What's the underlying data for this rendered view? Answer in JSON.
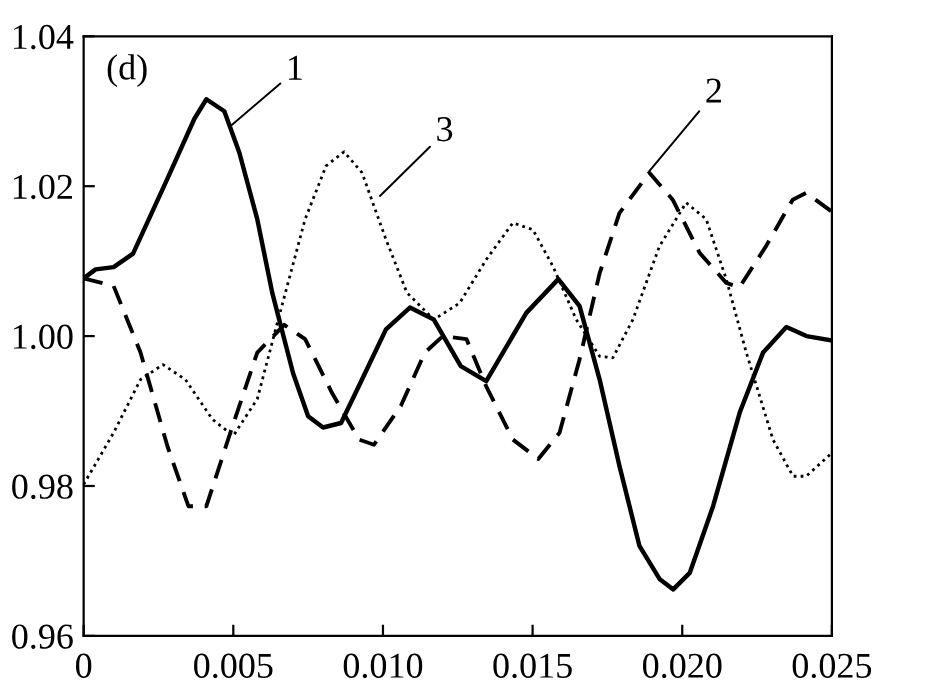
{
  "chart_data": {
    "type": "line",
    "annotations": [
      "(d)",
      {
        "text": "1",
        "x": 0.0049,
        "y": 1.028
      },
      {
        "text": "3",
        "x": 0.0099,
        "y": 1.0187
      },
      {
        "text": "2",
        "x": 0.0189,
        "y": 1.022
      }
    ],
    "series": [
      {
        "color": "#000000",
        "line_style": "solid",
        "x": [
          0,
          0.0004,
          0.001,
          0.00165,
          0.0028,
          0.0037,
          0.0041,
          0.0047,
          0.0052,
          0.0058,
          0.0063,
          0.007,
          0.0075,
          0.008,
          0.0086,
          0.0093,
          0.0101,
          0.0109,
          0.0117,
          0.0126,
          0.01345,
          0.01479,
          0.01586,
          0.01657,
          0.01724,
          0.0179,
          0.01857,
          0.01924,
          0.0197,
          0.02025,
          0.02103,
          0.02192,
          0.0227,
          0.02348,
          0.02415,
          0.025
        ],
        "values": [
          1.0077,
          1.0089,
          1.0092,
          1.011,
          1.021,
          1.029,
          1.0316,
          1.03,
          1.0245,
          1.0156,
          1.0058,
          0.995,
          0.9893,
          0.9878,
          0.9884,
          0.9942,
          1.0009,
          1.0038,
          1.0022,
          0.996,
          0.994,
          1.0031,
          1.0076,
          1.004,
          0.9942,
          0.9827,
          0.972,
          0.9676,
          0.9662,
          0.9684,
          0.9773,
          0.9898,
          0.9978,
          1.0012,
          1.0,
          0.9994
        ]
      },
      {
        "color": "#000000",
        "line_style": "dashed",
        "x": [
          0,
          0.001,
          0.0019,
          0.0028,
          0.0035,
          0.0041,
          0.0049,
          0.0058,
          0.0067,
          0.0074,
          0.0083,
          0.0092,
          0.0097,
          0.0106,
          0.0114,
          0.012,
          0.01279,
          0.01345,
          0.01434,
          0.01519,
          0.0159,
          0.01657,
          0.01724,
          0.0179,
          0.0189,
          0.01968,
          0.02058,
          0.02147,
          0.02191,
          0.0228,
          0.02369,
          0.02414,
          0.025
        ],
        "values": [
          1.0077,
          1.0067,
          0.9978,
          0.9853,
          0.9773,
          0.9773,
          0.9871,
          0.9978,
          1.0015,
          0.9996,
          0.9924,
          0.9862,
          0.9855,
          0.9907,
          0.9978,
          1.0,
          0.9996,
          0.9933,
          0.9862,
          0.9836,
          0.9871,
          0.9969,
          1.0084,
          1.0164,
          1.0218,
          1.0182,
          1.0111,
          1.0071,
          1.0065,
          1.012,
          1.0182,
          1.0191,
          1.0166
        ]
      },
      {
        "color": "#000000",
        "line_style": "dotted",
        "x": [
          0,
          0.001,
          0.0019,
          0.00265,
          0.0034,
          0.0043,
          0.005,
          0.0058,
          0.0065,
          0.0074,
          0.0081,
          0.0087,
          0.0093,
          0.0101,
          0.0108,
          0.0117,
          0.01256,
          0.01345,
          0.01434,
          0.01501,
          0.01568,
          0.01646,
          0.01724,
          0.01768,
          0.01835,
          0.01924,
          0.02013,
          0.0208,
          0.02147,
          0.02214,
          0.02303,
          0.0237,
          0.02414,
          0.025
        ],
        "values": [
          0.9802,
          0.9871,
          0.9942,
          0.9962,
          0.9942,
          0.9889,
          0.9867,
          0.9916,
          1.0022,
          1.0156,
          1.0227,
          1.0246,
          1.0218,
          1.0129,
          1.0058,
          1.0022,
          1.0044,
          1.0102,
          1.0151,
          1.0142,
          1.0093,
          1.0022,
          0.9973,
          0.9971,
          1.0022,
          1.012,
          1.0178,
          1.0156,
          1.0076,
          0.9978,
          0.9862,
          0.9813,
          0.9813,
          0.9844
        ]
      }
    ],
    "xlim": [
      0,
      0.025
    ],
    "ylim": [
      0.96,
      1.04
    ],
    "xticks": [
      0,
      0.005,
      {
        "value": 0.01,
        "label": "0.010"
      },
      0.015,
      {
        "value": 0.02,
        "label": "0.020"
      },
      0.025
    ],
    "yticks": [
      0.96,
      0.98,
      {
        "value": 1.0,
        "label": "1.00"
      },
      1.02,
      1.04
    ],
    "grid": false,
    "legend": false,
    "marker": "none"
  }
}
